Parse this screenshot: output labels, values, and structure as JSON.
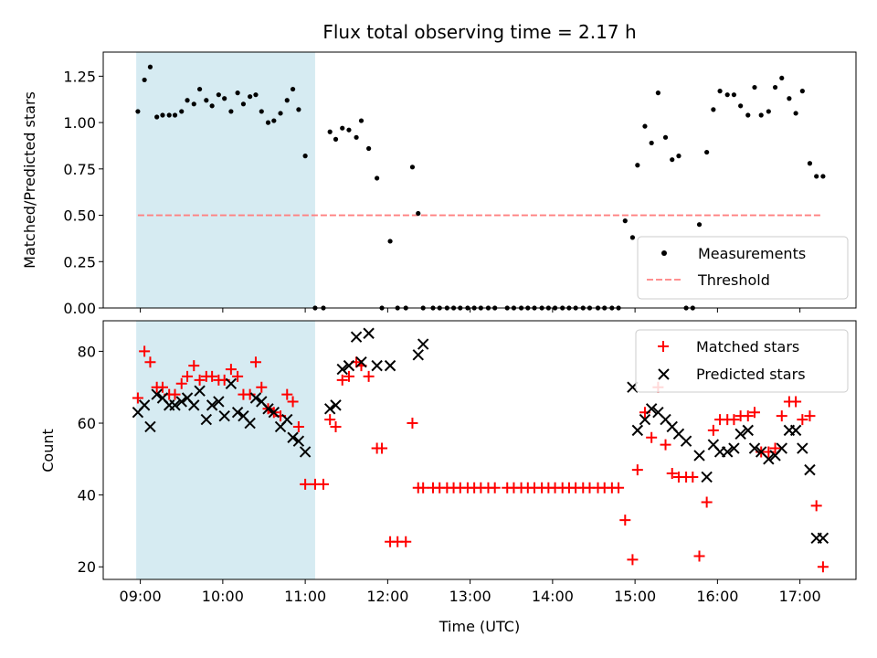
{
  "chart_data": [
    {
      "type": "scatter",
      "title": "Flux total observing time = 2.17 h",
      "xlabel": "",
      "ylabel": "Matched/Predicted stars",
      "ylim": [
        0,
        1.38
      ],
      "yticks": [
        0.0,
        0.25,
        0.5,
        0.75,
        1.0,
        1.25
      ],
      "ytick_labels": [
        "0.00",
        "0.25",
        "0.50",
        "0.75",
        "1.00",
        "1.25"
      ],
      "xlim_hours": [
        8.55,
        17.68
      ],
      "xticks_hours": [
        9,
        10,
        11,
        12,
        13,
        14,
        15,
        16,
        17
      ],
      "highlight_band_hours": [
        8.95,
        11.12
      ],
      "highlight_color": "#add8e6",
      "legend_position": "lower-right",
      "series": [
        {
          "name": "Measurements",
          "marker": "dot",
          "color": "#000000",
          "x": [
            8.97,
            9.05,
            9.12,
            9.2,
            9.27,
            9.35,
            9.42,
            9.5,
            9.57,
            9.65,
            9.72,
            9.8,
            9.87,
            9.95,
            10.02,
            10.1,
            10.18,
            10.25,
            10.33,
            10.4,
            10.47,
            10.55,
            10.62,
            10.7,
            10.78,
            10.85,
            10.92,
            11.0,
            11.12,
            11.22,
            11.3,
            11.37,
            11.45,
            11.53,
            11.62,
            11.68,
            11.77,
            11.87,
            11.93,
            12.03,
            12.12,
            12.22,
            12.3,
            12.37,
            12.43,
            12.55,
            12.63,
            12.72,
            12.8,
            12.88,
            12.97,
            13.05,
            13.13,
            13.22,
            13.3,
            13.45,
            13.53,
            13.62,
            13.7,
            13.78,
            13.87,
            13.95,
            14.03,
            14.12,
            14.2,
            14.28,
            14.37,
            14.45,
            14.55,
            14.63,
            14.72,
            14.8,
            14.88,
            14.97,
            15.03,
            15.12,
            15.2,
            15.28,
            15.37,
            15.45,
            15.53,
            15.62,
            15.7,
            15.78,
            15.87,
            15.95,
            16.03,
            16.12,
            16.2,
            16.28,
            16.37,
            16.45,
            16.53,
            16.62,
            16.7,
            16.78,
            16.87,
            16.95,
            17.03,
            17.12,
            17.2,
            17.28
          ],
          "y": [
            1.06,
            1.23,
            1.3,
            1.03,
            1.04,
            1.04,
            1.04,
            1.06,
            1.12,
            1.1,
            1.18,
            1.12,
            1.09,
            1.15,
            1.13,
            1.06,
            1.16,
            1.1,
            1.14,
            1.15,
            1.06,
            1.0,
            1.01,
            1.05,
            1.12,
            1.18,
            1.07,
            0.82,
            0.0,
            0.0,
            0.95,
            0.91,
            0.97,
            0.96,
            0.92,
            1.01,
            0.86,
            0.7,
            0.0,
            0.36,
            0.0,
            0.0,
            0.76,
            0.51,
            0.0,
            0.0,
            0.0,
            0.0,
            0.0,
            0.0,
            0.0,
            0.0,
            0.0,
            0.0,
            0.0,
            0.0,
            0.0,
            0.0,
            0.0,
            0.0,
            0.0,
            0.0,
            0.0,
            0.0,
            0.0,
            0.0,
            0.0,
            0.0,
            0.0,
            0.0,
            0.0,
            0.0,
            0.47,
            0.38,
            0.77,
            0.98,
            0.89,
            1.16,
            0.92,
            0.8,
            0.82,
            0.0,
            0.0,
            0.45,
            0.84,
            1.07,
            1.17,
            1.15,
            1.15,
            1.09,
            1.04,
            1.19,
            1.04,
            1.06,
            1.19,
            1.24,
            1.13,
            1.05,
            1.17,
            0.78,
            0.71,
            0.71
          ]
        },
        {
          "name": "Threshold",
          "type": "line",
          "style": "dashed",
          "color": "#ff8080",
          "x": [
            8.97,
            17.28
          ],
          "y": [
            0.5,
            0.5
          ]
        }
      ]
    },
    {
      "type": "scatter",
      "title": "",
      "xlabel": "Time (UTC)",
      "ylabel": "Count",
      "ylim": [
        16.5,
        88.5
      ],
      "yticks": [
        20,
        40,
        60,
        80
      ],
      "ytick_labels": [
        "20",
        "40",
        "60",
        "80"
      ],
      "xlim_hours": [
        8.55,
        17.68
      ],
      "xticks_hours": [
        9,
        10,
        11,
        12,
        13,
        14,
        15,
        16,
        17
      ],
      "xtick_labels": [
        "09:00",
        "10:00",
        "11:00",
        "12:00",
        "13:00",
        "14:00",
        "15:00",
        "16:00",
        "17:00"
      ],
      "highlight_band_hours": [
        8.95,
        11.12
      ],
      "highlight_color": "#add8e6",
      "legend_position": "top-right",
      "series": [
        {
          "name": "Matched stars",
          "marker": "plus",
          "color": "#ff0000",
          "x": [
            8.97,
            9.05,
            9.12,
            9.2,
            9.27,
            9.35,
            9.42,
            9.5,
            9.57,
            9.65,
            9.72,
            9.8,
            9.87,
            9.95,
            10.02,
            10.1,
            10.18,
            10.25,
            10.33,
            10.4,
            10.47,
            10.55,
            10.62,
            10.7,
            10.78,
            10.85,
            10.92,
            11.0,
            11.12,
            11.22,
            11.3,
            11.37,
            11.45,
            11.53,
            11.62,
            11.68,
            11.77,
            11.87,
            11.93,
            12.03,
            12.12,
            12.22,
            12.3,
            12.37,
            12.43,
            12.55,
            12.63,
            12.72,
            12.8,
            12.88,
            12.97,
            13.05,
            13.13,
            13.22,
            13.3,
            13.45,
            13.53,
            13.62,
            13.7,
            13.78,
            13.87,
            13.95,
            14.03,
            14.12,
            14.2,
            14.28,
            14.37,
            14.45,
            14.55,
            14.63,
            14.72,
            14.8,
            14.88,
            14.97,
            15.03,
            15.12,
            15.2,
            15.28,
            15.37,
            15.45,
            15.53,
            15.62,
            15.7,
            15.78,
            15.87,
            15.95,
            16.03,
            16.12,
            16.2,
            16.28,
            16.37,
            16.45,
            16.53,
            16.62,
            16.7,
            16.78,
            16.87,
            16.95,
            17.03,
            17.12,
            17.2,
            17.28
          ],
          "y": [
            67,
            80,
            77,
            70,
            70,
            68,
            68,
            71,
            73,
            76,
            72,
            73,
            73,
            72,
            72,
            75,
            73,
            68,
            68,
            77,
            70,
            64,
            63,
            62,
            68,
            66,
            59,
            43,
            43,
            43,
            61,
            59,
            72,
            73,
            77,
            76,
            73,
            53,
            53,
            27,
            27,
            27,
            60,
            42,
            42,
            42,
            42,
            42,
            42,
            42,
            42,
            42,
            42,
            42,
            42,
            42,
            42,
            42,
            42,
            42,
            42,
            42,
            42,
            42,
            42,
            42,
            42,
            42,
            42,
            42,
            42,
            42,
            33,
            22,
            47,
            63,
            56,
            70,
            54,
            46,
            45,
            45,
            45,
            23,
            38,
            58,
            61,
            61,
            61,
            62,
            62,
            63,
            52,
            52,
            53,
            62,
            66,
            66,
            61,
            62,
            37,
            20
          ]
        },
        {
          "name": "Predicted stars",
          "marker": "x",
          "color": "#000000",
          "x": [
            8.97,
            9.05,
            9.12,
            9.2,
            9.27,
            9.35,
            9.42,
            9.5,
            9.57,
            9.65,
            9.72,
            9.8,
            9.87,
            9.95,
            10.02,
            10.1,
            10.18,
            10.25,
            10.33,
            10.4,
            10.47,
            10.55,
            10.62,
            10.7,
            10.78,
            10.85,
            10.92,
            11.0,
            11.3,
            11.37,
            11.45,
            11.53,
            11.62,
            11.68,
            11.77,
            11.87,
            12.03,
            12.37,
            12.43,
            14.97,
            15.03,
            15.12,
            15.2,
            15.28,
            15.37,
            15.45,
            15.53,
            15.62,
            15.78,
            15.87,
            15.95,
            16.03,
            16.12,
            16.2,
            16.28,
            16.37,
            16.45,
            16.53,
            16.62,
            16.7,
            16.78,
            16.87,
            16.95,
            17.03,
            17.12,
            17.2,
            17.28
          ],
          "y": [
            63,
            65,
            59,
            68,
            67,
            65,
            65,
            66,
            67,
            65,
            69,
            61,
            65,
            66,
            62,
            71,
            63,
            62,
            60,
            67,
            66,
            64,
            63,
            59,
            61,
            56,
            55,
            52,
            64,
            65,
            75,
            76,
            84,
            77,
            85,
            76,
            76,
            79,
            82,
            70,
            58,
            61,
            64,
            63,
            61,
            59,
            57,
            55,
            51,
            45,
            54,
            52,
            52,
            53,
            57,
            58,
            53,
            52,
            50,
            51,
            53,
            58,
            58,
            53,
            47,
            28,
            28
          ]
        }
      ]
    }
  ]
}
